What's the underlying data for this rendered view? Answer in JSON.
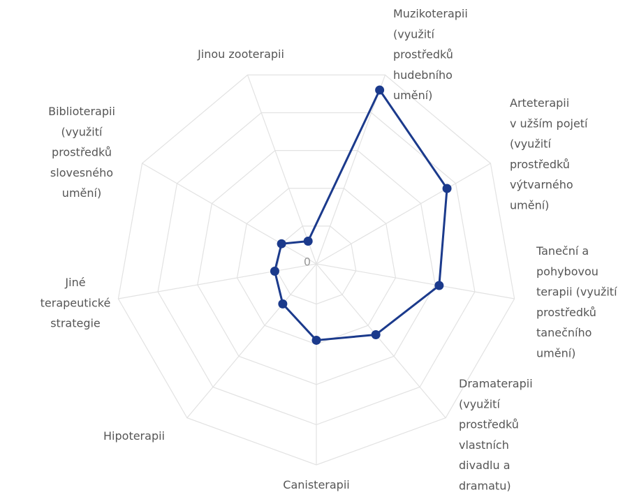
{
  "chart_data": {
    "type": "radar",
    "categories": [
      "Muzikoterapii\n(využití\nprostředků\nhudebního\numění)",
      "Arteterapii\nv užším pojetí\n(využití\nprostředků\nvýtvarného\numění)",
      "Taneční a\npohybovou\nterapii (využití\nprostředků\ntanečního\numění)",
      "Dramaterapii\n(využití\nprostředků\nvlastních\ndivadlu a\ndramatu)",
      "Canisterapii",
      "Hipoterapii",
      "Jiné\nterapeutické\nstrategie",
      "Biblioterapii\n(využití\nprostředků\nslovesného\numění)",
      "Jinou zooterapii"
    ],
    "values": [
      92,
      75,
      62,
      46,
      38,
      26,
      21,
      20,
      12
    ],
    "color": "#1b3a8c",
    "ylim": [
      0,
      100
    ],
    "yticks": [
      0
    ],
    "grid_rings": [
      20,
      40,
      60,
      80,
      100
    ],
    "grid": true
  }
}
